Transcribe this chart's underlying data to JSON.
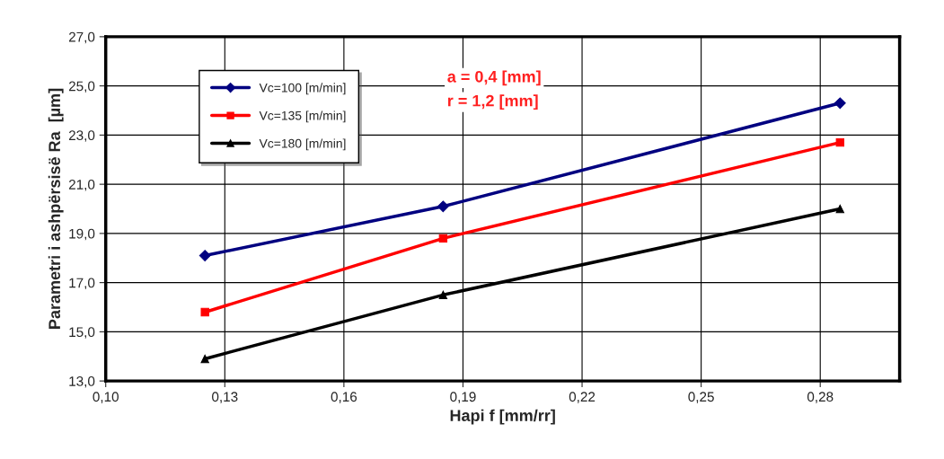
{
  "chart_data": {
    "type": "line",
    "xlabel": "Hapi f [mm/rr]",
    "ylabel": "Parametri i ashpërsisë Ra  [µm]",
    "x": [
      0.125,
      0.185,
      0.285
    ],
    "series": [
      {
        "name": "Vc=100 [m/min]",
        "color": "#000080",
        "marker": "diamond",
        "values": [
          18.1,
          20.1,
          24.3
        ]
      },
      {
        "name": "Vc=135 [m/min]",
        "color": "#ff0000",
        "marker": "square",
        "values": [
          15.8,
          18.8,
          22.7
        ]
      },
      {
        "name": "Vc=180 [m/min]",
        "color": "#000000",
        "marker": "triangle",
        "values": [
          13.9,
          16.5,
          20.0
        ]
      }
    ],
    "xlim": [
      0.1,
      0.3
    ],
    "xticks": [
      {
        "value": 0.1,
        "label": "0,10"
      },
      {
        "value": 0.13,
        "label": "0,13"
      },
      {
        "value": 0.16,
        "label": "0,16"
      },
      {
        "value": 0.19,
        "label": "0,19"
      },
      {
        "value": 0.22,
        "label": "0,22"
      },
      {
        "value": 0.25,
        "label": "0,25"
      },
      {
        "value": 0.28,
        "label": "0,28"
      }
    ],
    "ylim": [
      13,
      27
    ],
    "yticks": [
      {
        "value": 13,
        "label": "13,0"
      },
      {
        "value": 15,
        "label": "15,0"
      },
      {
        "value": 17,
        "label": "17,0"
      },
      {
        "value": 19,
        "label": "19,0"
      },
      {
        "value": 21,
        "label": "21,0"
      },
      {
        "value": 23,
        "label": "23,0"
      },
      {
        "value": 25,
        "label": "25,0"
      },
      {
        "value": 27,
        "label": "27,0"
      }
    ],
    "annotations": [
      "a = 0,4 [mm]",
      "r = 1,2 [mm]"
    ],
    "grid": true,
    "legend": "top left",
    "line_style": "solid"
  }
}
